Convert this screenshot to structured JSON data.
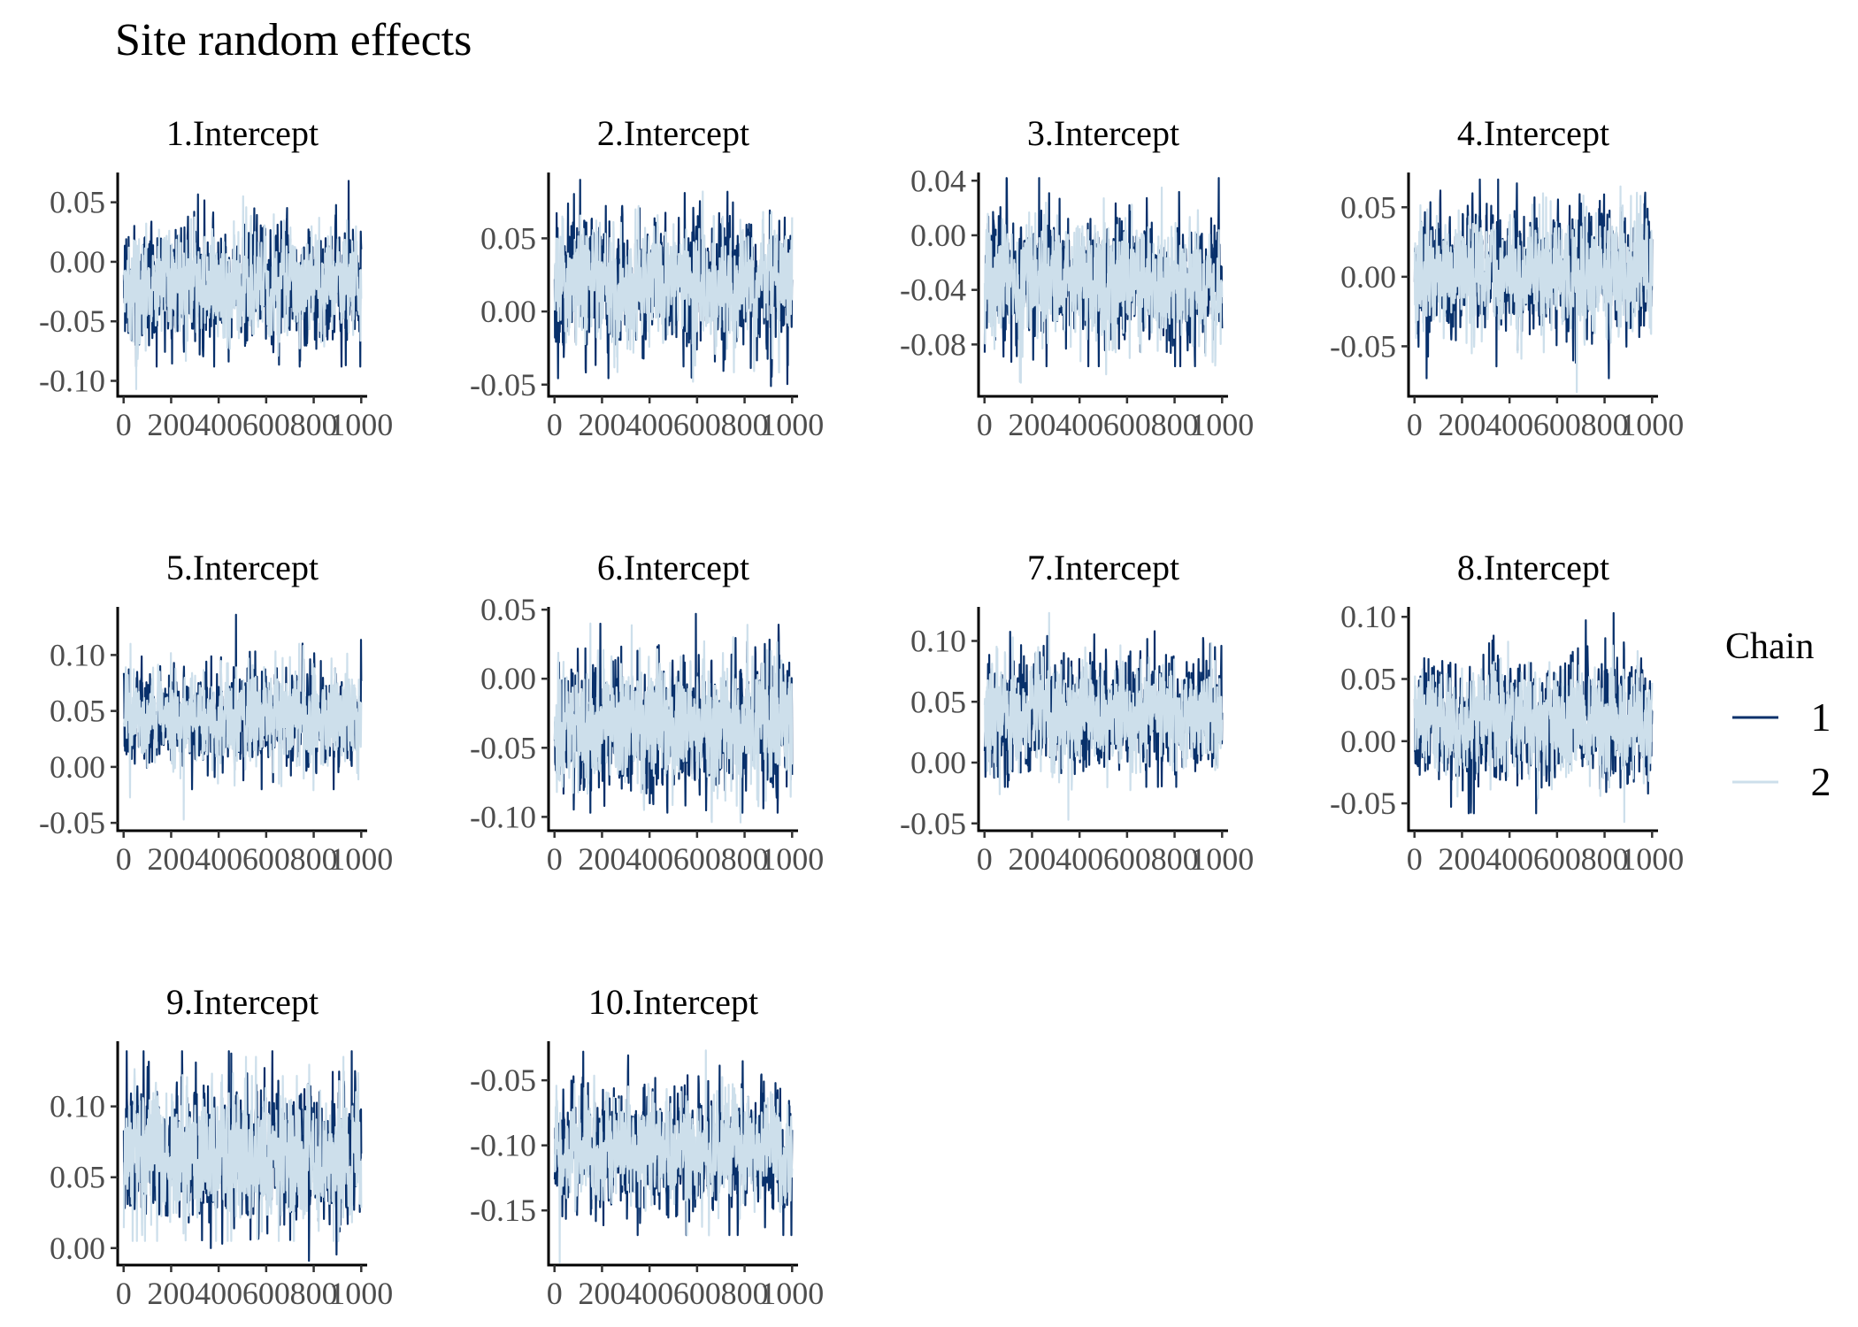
{
  "chart_data": {
    "type": "line",
    "title": "Site random effects",
    "x_ticks": [
      "0",
      "200",
      "400",
      "600",
      "800",
      "1000"
    ],
    "xlim": [
      -25,
      1025
    ],
    "iterations": 1000,
    "legend": {
      "title": "Chain",
      "placement": "right",
      "entries": [
        {
          "name": "1",
          "color": "#08306b"
        },
        {
          "name": "2",
          "color": "#cddfeb"
        }
      ]
    },
    "panels": [
      {
        "label": "1.Intercept",
        "ylim": [
          -0.113,
          0.075
        ],
        "y_ticks": [
          "0.05",
          "0.00",
          "-0.05",
          "-0.10"
        ],
        "series": [
          {
            "name": "1",
            "mean": -0.019,
            "sd": 0.025,
            "min": -0.088,
            "max": 0.068
          },
          {
            "name": "2",
            "mean": -0.02,
            "sd": 0.022,
            "min": -0.107,
            "max": 0.055
          }
        ]
      },
      {
        "label": "2.Intercept",
        "ylim": [
          -0.058,
          0.095
        ],
        "y_ticks": [
          "0.05",
          "0.00",
          "-0.05"
        ],
        "series": [
          {
            "name": "1",
            "mean": 0.019,
            "sd": 0.022,
            "min": -0.051,
            "max": 0.09
          },
          {
            "name": "2",
            "mean": 0.021,
            "sd": 0.02,
            "min": -0.048,
            "max": 0.082
          }
        ]
      },
      {
        "label": "3.Intercept",
        "ylim": [
          -0.118,
          0.046
        ],
        "y_ticks": [
          "0.04",
          "0.00",
          "-0.04",
          "-0.08"
        ],
        "series": [
          {
            "name": "1",
            "mean": -0.035,
            "sd": 0.022,
            "min": -0.096,
            "max": 0.042
          },
          {
            "name": "2",
            "mean": -0.036,
            "sd": 0.021,
            "min": -0.108,
            "max": 0.035
          }
        ]
      },
      {
        "label": "4.Intercept",
        "ylim": [
          -0.086,
          0.075
        ],
        "y_ticks": [
          "0.05",
          "0.00",
          "-0.05"
        ],
        "series": [
          {
            "name": "1",
            "mean": 0.003,
            "sd": 0.022,
            "min": -0.073,
            "max": 0.07
          },
          {
            "name": "2",
            "mean": 0.002,
            "sd": 0.02,
            "min": -0.083,
            "max": 0.065
          }
        ]
      },
      {
        "label": "5.Intercept",
        "ylim": [
          -0.057,
          0.143
        ],
        "y_ticks": [
          "0.10",
          "0.05",
          "0.00",
          "-0.05"
        ],
        "series": [
          {
            "name": "1",
            "mean": 0.045,
            "sd": 0.022,
            "min": -0.02,
            "max": 0.136
          },
          {
            "name": "2",
            "mean": 0.046,
            "sd": 0.021,
            "min": -0.047,
            "max": 0.11
          }
        ]
      },
      {
        "label": "6.Intercept",
        "ylim": [
          -0.11,
          0.052
        ],
        "y_ticks": [
          "0.05",
          "0.00",
          "-0.05",
          "-0.10"
        ],
        "series": [
          {
            "name": "1",
            "mean": -0.035,
            "sd": 0.024,
            "min": -0.097,
            "max": 0.047
          },
          {
            "name": "2",
            "mean": -0.034,
            "sd": 0.022,
            "min": -0.104,
            "max": 0.04
          }
        ]
      },
      {
        "label": "7.Intercept",
        "ylim": [
          -0.056,
          0.128
        ],
        "y_ticks": [
          "0.10",
          "0.05",
          "0.00",
          "-0.05"
        ],
        "series": [
          {
            "name": "1",
            "mean": 0.039,
            "sd": 0.023,
            "min": -0.02,
            "max": 0.108
          },
          {
            "name": "2",
            "mean": 0.04,
            "sd": 0.021,
            "min": -0.047,
            "max": 0.123
          }
        ]
      },
      {
        "label": "8.Intercept",
        "ylim": [
          -0.072,
          0.108
        ],
        "y_ticks": [
          "0.10",
          "0.05",
          "0.00",
          "-0.05"
        ],
        "series": [
          {
            "name": "1",
            "mean": 0.015,
            "sd": 0.023,
            "min": -0.058,
            "max": 0.103
          },
          {
            "name": "2",
            "mean": 0.016,
            "sd": 0.021,
            "min": -0.065,
            "max": 0.08
          }
        ]
      },
      {
        "label": "9.Intercept",
        "ylim": [
          -0.012,
          0.146
        ],
        "y_ticks": [
          "0.10",
          "0.05",
          "0.00"
        ],
        "series": [
          {
            "name": "1",
            "mean": 0.065,
            "sd": 0.024,
            "min": -0.009,
            "max": 0.139
          },
          {
            "name": "2",
            "mean": 0.066,
            "sd": 0.022,
            "min": 0.005,
            "max": 0.135
          }
        ]
      },
      {
        "label": "10.Intercept",
        "ylim": [
          -0.192,
          -0.02
        ],
        "y_ticks": [
          "-0.05",
          "-0.10",
          "-0.15"
        ],
        "series": [
          {
            "name": "1",
            "mean": -0.105,
            "sd": 0.022,
            "min": -0.169,
            "max": -0.028
          },
          {
            "name": "2",
            "mean": -0.104,
            "sd": 0.02,
            "min": -0.19,
            "max": -0.027
          }
        ]
      }
    ]
  }
}
